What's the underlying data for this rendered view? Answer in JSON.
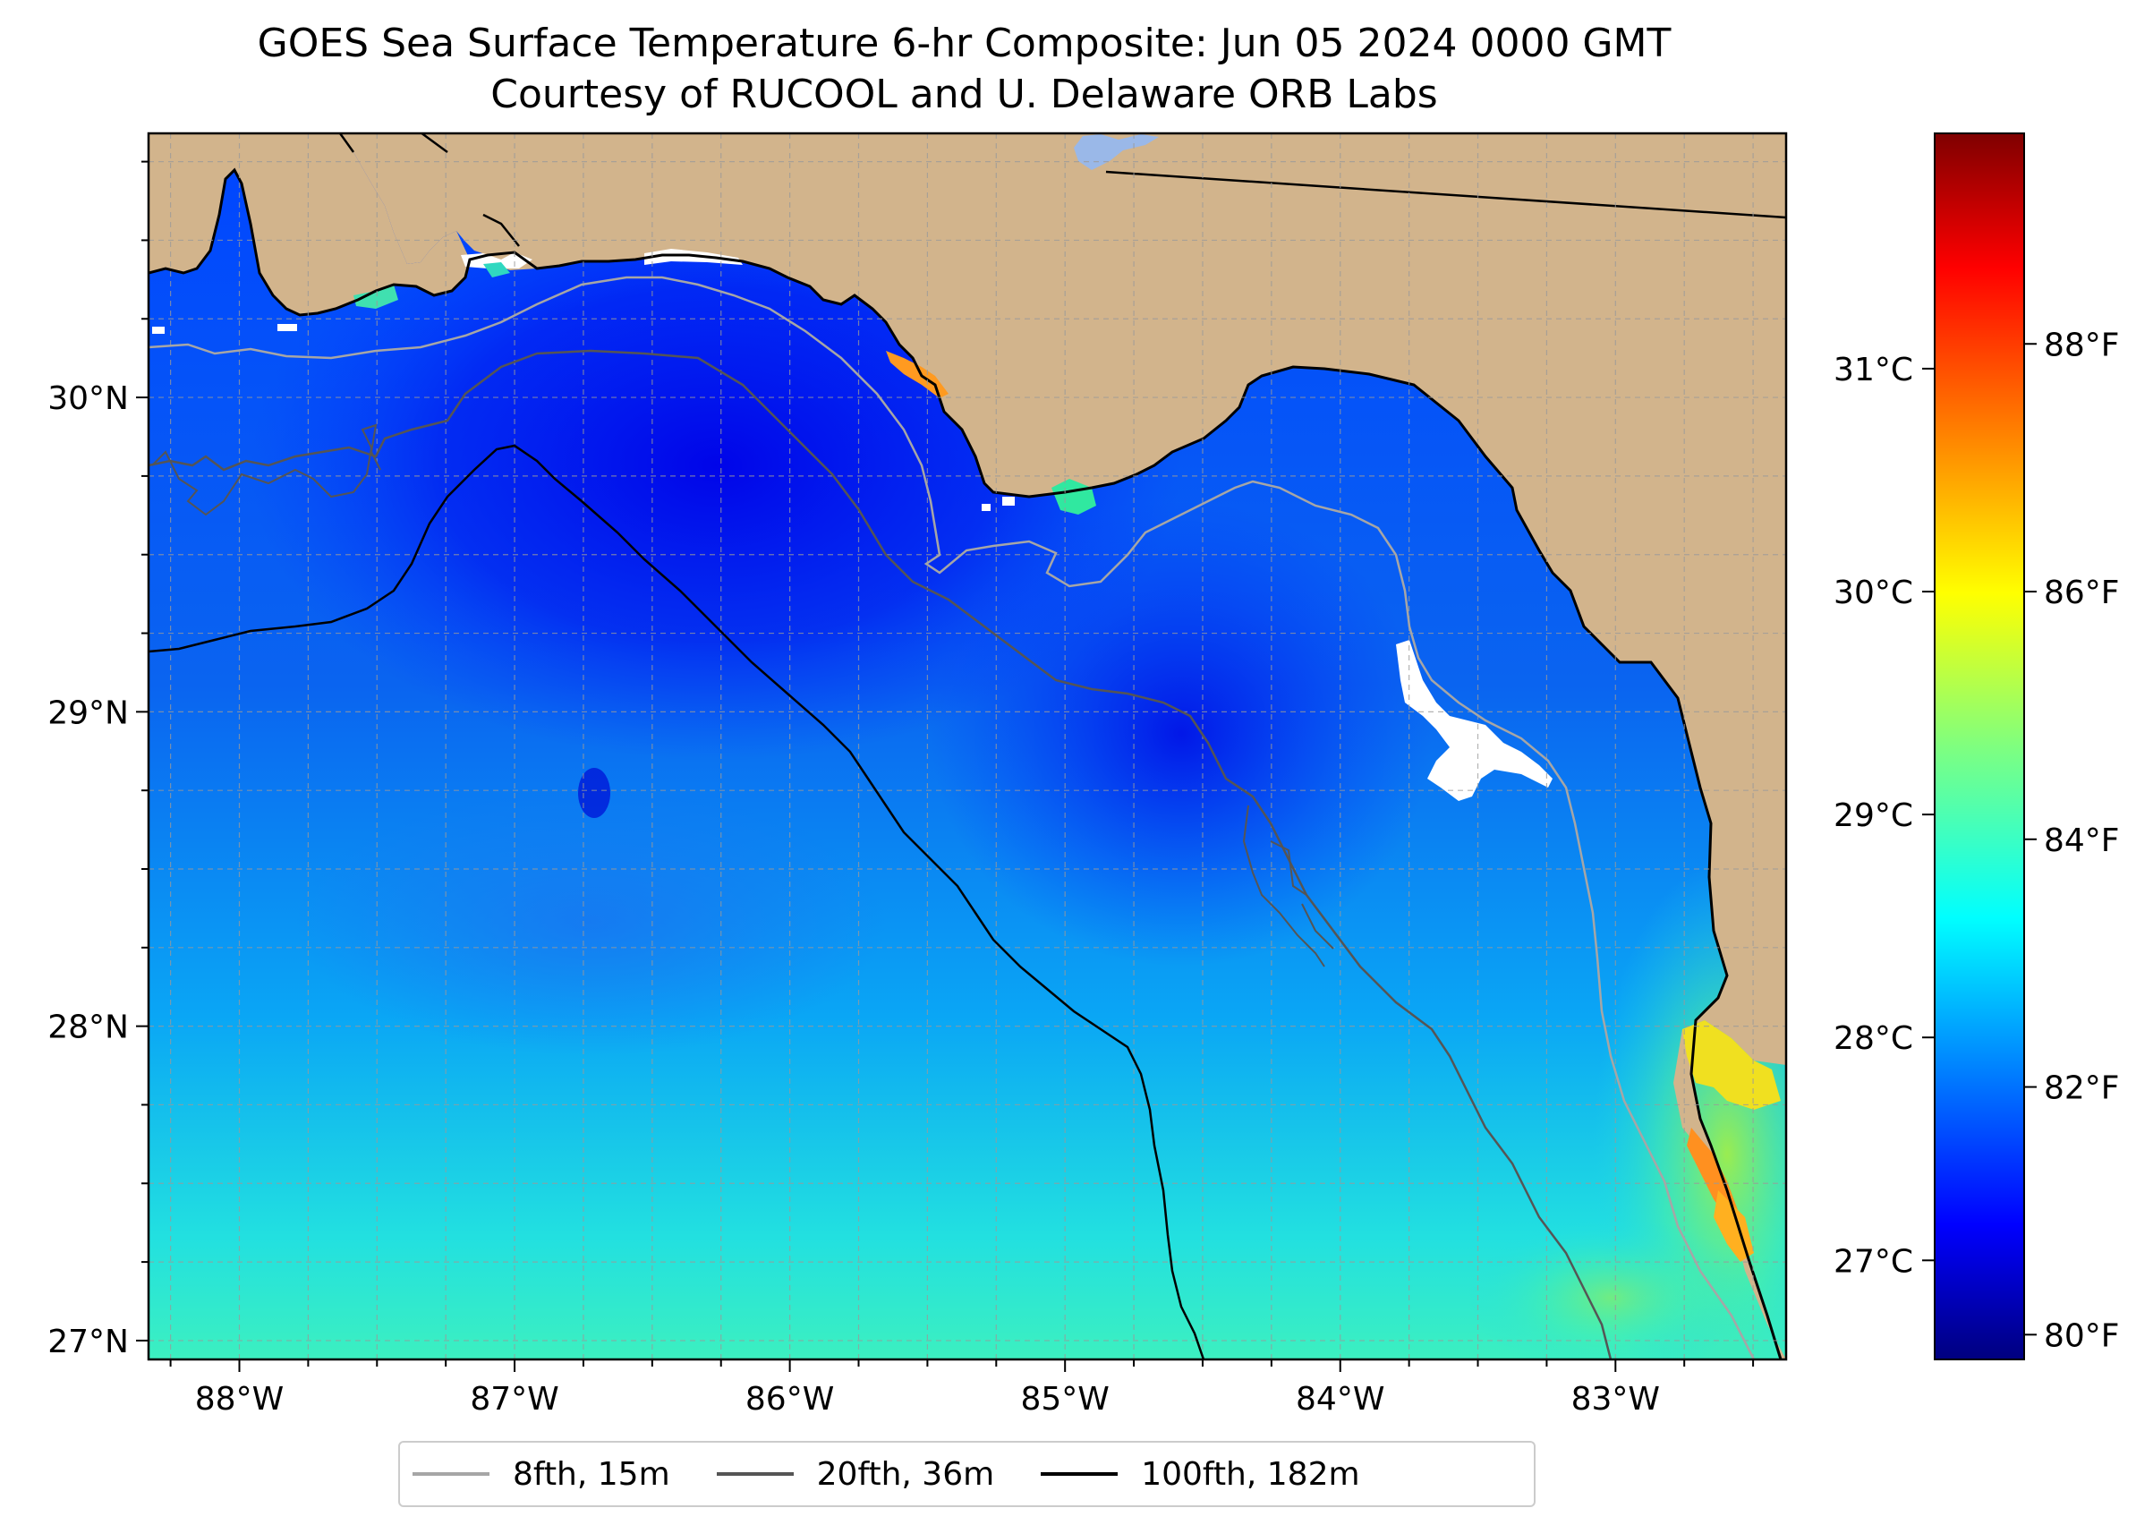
{
  "title": {
    "line1": "GOES Sea Surface Temperature 6-hr Composite: Jun 05 2024 0000 GMT",
    "line2": "Courtesy of RUCOOL and U. Delaware ORB Labs"
  },
  "map": {
    "extent": {
      "lon": [
        -88.33,
        -82.38
      ],
      "lat": [
        26.94,
        30.84
      ]
    },
    "land_color": "#d2b48c",
    "gridlines": true,
    "lon_ticks": [
      {
        "value": -88,
        "label": "88°W"
      },
      {
        "value": -87,
        "label": "87°W"
      },
      {
        "value": -86,
        "label": "86°W"
      },
      {
        "value": -85,
        "label": "85°W"
      },
      {
        "value": -84,
        "label": "84°W"
      },
      {
        "value": -83,
        "label": "83°W"
      }
    ],
    "lat_ticks": [
      {
        "value": 27,
        "label": "27°N"
      },
      {
        "value": 28,
        "label": "28°N"
      },
      {
        "value": 29,
        "label": "29°N"
      },
      {
        "value": 30,
        "label": "30°N"
      }
    ]
  },
  "colorbar": {
    "colormap": "jet",
    "range_f": [
      79.8,
      89.7
    ],
    "celsius_ticks": [
      {
        "value": 27,
        "label": "27°C"
      },
      {
        "value": 28,
        "label": "28°C"
      },
      {
        "value": 29,
        "label": "29°C"
      },
      {
        "value": 30,
        "label": "30°C"
      },
      {
        "value": 31,
        "label": "31°C"
      }
    ],
    "fahrenheit_ticks": [
      {
        "value": 80,
        "label": "80°F"
      },
      {
        "value": 82,
        "label": "82°F"
      },
      {
        "value": 84,
        "label": "84°F"
      },
      {
        "value": 86,
        "label": "86°F"
      },
      {
        "value": 88,
        "label": "88°F"
      }
    ]
  },
  "legend": {
    "items": [
      {
        "label": "8fth, 15m",
        "color": "#a6a6a6"
      },
      {
        "label": "20fth, 36m",
        "color": "#555555"
      },
      {
        "label": "100fth, 182m",
        "color": "#000000"
      }
    ]
  }
}
